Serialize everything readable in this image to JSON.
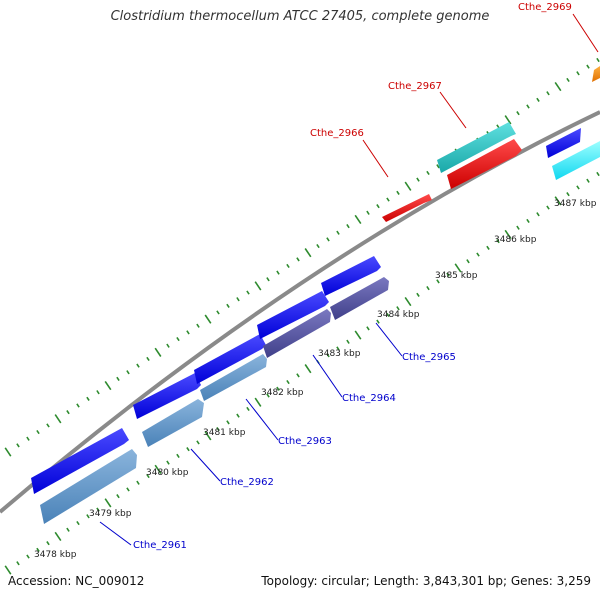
{
  "title": "Clostridium thermocellum ATCC 27405, complete genome",
  "accession": "Accession: NC_009012",
  "summary": "Topology: circular; Length: 3,843,301 bp; Genes: 3,259",
  "colors": {
    "backbone": "#8a8a8a",
    "tick": "#2e8b2e",
    "label_forward": "#cc0000",
    "label_reverse": "#0000cc",
    "leader_forward": "#cc0000",
    "leader_reverse": "#0000cc"
  },
  "tick_labels": [
    "3478 kbp",
    "3479 kbp",
    "3480 kbp",
    "3481 kbp",
    "3482 kbp",
    "3483 kbp",
    "3484 kbp",
    "3485 kbp",
    "3486 kbp",
    "3487 kbp"
  ],
  "gene_labels": {
    "forward": [
      "Cthe_2966",
      "Cthe_2967",
      "Cthe_2969"
    ],
    "reverse": [
      "Cthe_2961",
      "Cthe_2962",
      "Cthe_2963",
      "Cthe_2964",
      "Cthe_2965"
    ]
  }
}
